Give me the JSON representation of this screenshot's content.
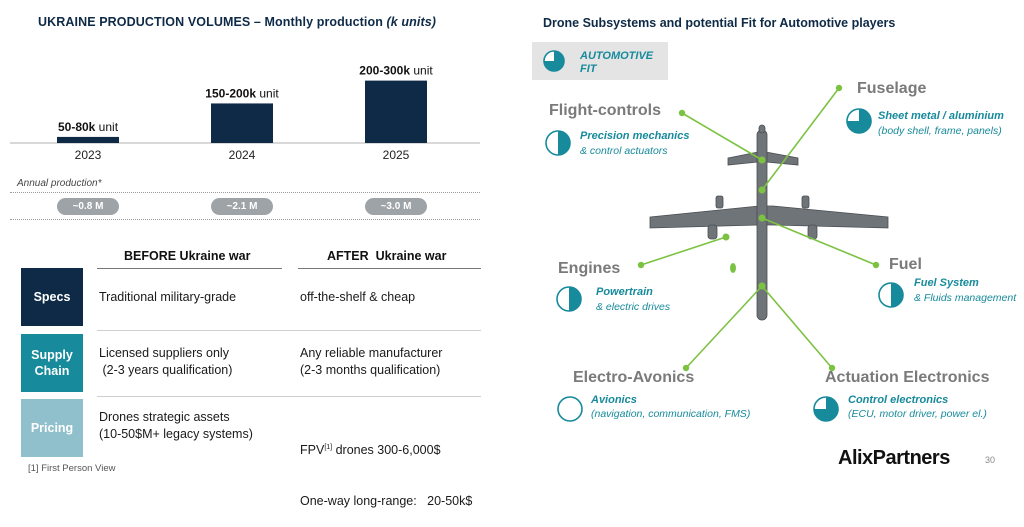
{
  "left_title": {
    "main": "UKRAINE PRODUCTION VOLUMES – Monthly production ",
    "unit": "(k units)"
  },
  "right_title": "Drone Subsystems and potential Fit for Automotive players",
  "chart_data": {
    "type": "bar",
    "title": "UKRAINE PRODUCTION VOLUMES – Monthly production (k units)",
    "categories": [
      "2023",
      "2024",
      "2025"
    ],
    "values": [
      65,
      175,
      250
    ],
    "ranges": [
      [
        50,
        80
      ],
      [
        150,
        200
      ],
      [
        200,
        300
      ]
    ],
    "data_labels": [
      {
        "bold": "50-80k",
        "rest": " unit"
      },
      {
        "bold": "150-200k",
        "rest": " unit"
      },
      {
        "bold": "200-300k",
        "rest": " unit"
      }
    ],
    "bar_color": "#0e2a47",
    "ylim": [
      0,
      280
    ]
  },
  "annual": {
    "label": "Annual production*",
    "values": [
      "~0.8 M",
      "~2.1 M",
      "~3.0 M"
    ]
  },
  "comparison": {
    "before_header": "BEFORE Ukraine war",
    "after_header": "AFTER  Ukraine war",
    "rows": [
      {
        "label": "Specs",
        "color": "#0e2a47",
        "before": [
          "Traditional military-grade"
        ],
        "after": [
          "off-the-shelf & cheap"
        ]
      },
      {
        "label": "Supply Chain",
        "color": "#178a9b",
        "before": [
          "Licensed suppliers only",
          " (2-3 years qualification)"
        ],
        "after": [
          "Any reliable manufacturer",
          "(2-3 months qualification)"
        ]
      },
      {
        "label": "Pricing",
        "color": "#8fc0cb",
        "before": [
          "Drones strategic assets",
          "(10-50$M+ legacy systems)"
        ],
        "after_fpv": {
          "prefix": "FPV",
          "sup": "[1]",
          "suffix": " drones 300-6,000$"
        },
        "after_line2": "One-way long-range:   20-50k$"
      }
    ]
  },
  "footnote": "[1] First Person View",
  "legend": {
    "line1": "AUTOMOTIVE",
    "line2": "FIT",
    "fill": 0.75
  },
  "subsystems": [
    {
      "id": "flight",
      "title": "Flight-controls",
      "name": "Precision mechanics",
      "desc": "& control actuators",
      "fit": 0.5
    },
    {
      "id": "fuselage",
      "title": "Fuselage",
      "name": "Sheet metal / aluminium",
      "desc": "(body shell, frame, panels)",
      "fit": 0.75
    },
    {
      "id": "engines",
      "title": "Engines",
      "name": "Powertrain",
      "desc": "& electric drives",
      "fit": 0.5
    },
    {
      "id": "fuel",
      "title": "Fuel",
      "name": "Fuel System",
      "desc": "& Fluids management",
      "fit": 0.5
    },
    {
      "id": "avionics",
      "title": "Electro-Avonics",
      "name": "Avionics",
      "desc": "(navigation, communication, FMS)",
      "fit": 0
    },
    {
      "id": "actuation",
      "title": "Actuation Electronics",
      "name": "Control electronics",
      "desc": "(ECU, motor driver, power el.)",
      "fit": 0.75
    }
  ],
  "colors": {
    "navy": "#0e2a47",
    "teal": "#178a9b",
    "light_teal": "#8fc0cb",
    "connector": "#7cc242"
  },
  "brand": "AlixPartners",
  "page_number": "30"
}
